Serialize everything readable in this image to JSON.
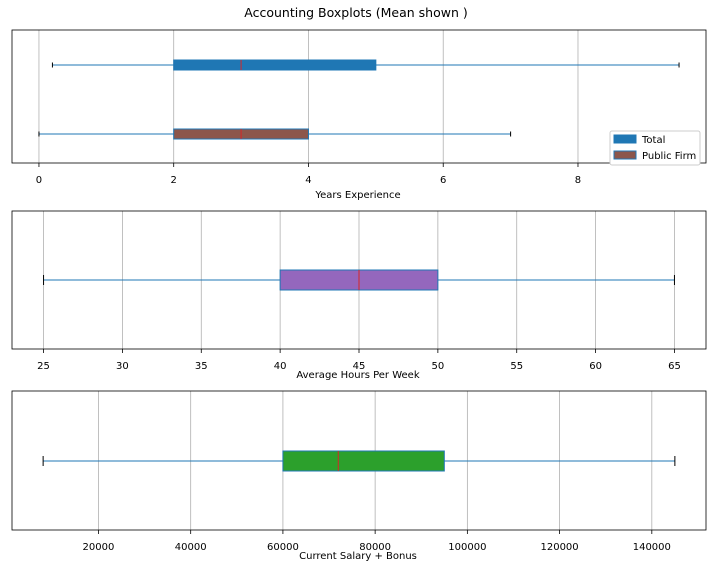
{
  "title": "Accounting Boxplots (Mean shown )",
  "colors": {
    "whisker": "#1f77b4",
    "median": "#d62728",
    "grid": "#b0b0b0",
    "frame": "#000000"
  },
  "chart_data": [
    {
      "type": "boxplot",
      "orientation": "horizontal",
      "xlabel": "Years Experience",
      "xlim": [
        -0.4,
        9.9
      ],
      "xticks": [
        0,
        2,
        4,
        6,
        8
      ],
      "grid": "vertical",
      "legend": {
        "placement": "bottom-right",
        "entries": [
          "Total",
          "Public Firm"
        ]
      },
      "series": [
        {
          "name": "Total",
          "min": 0.2,
          "q1": 2,
          "median": 3,
          "q3": 5,
          "max": 9.5,
          "color": "#1f77b4",
          "edge": "#1f77b4"
        },
        {
          "name": "Public Firm",
          "min": 0,
          "q1": 2,
          "median": 3,
          "q3": 4,
          "max": 7,
          "color": "#8c564b",
          "edge": "#1f77b4"
        }
      ]
    },
    {
      "type": "boxplot",
      "orientation": "horizontal",
      "xlabel": "Average Hours Per Week",
      "xlim": [
        23.0,
        67.0
      ],
      "xticks": [
        25,
        30,
        35,
        40,
        45,
        50,
        55,
        60,
        65
      ],
      "grid": "vertical",
      "series": [
        {
          "min": 25,
          "q1": 40,
          "median": 45,
          "q3": 50,
          "max": 65,
          "color": "#9467bd",
          "edge": "#1f77b4"
        }
      ]
    },
    {
      "type": "boxplot",
      "orientation": "horizontal",
      "xlabel": "Current Salary + Bonus",
      "xlim": [
        1250,
        151750
      ],
      "xticks": [
        20000,
        40000,
        60000,
        80000,
        100000,
        120000,
        140000
      ],
      "grid": "vertical",
      "series": [
        {
          "min": 8000,
          "q1": 60000,
          "median": 72000,
          "q3": 95000,
          "max": 145000,
          "color": "#2ca02c",
          "edge": "#1f77b4"
        }
      ]
    }
  ]
}
